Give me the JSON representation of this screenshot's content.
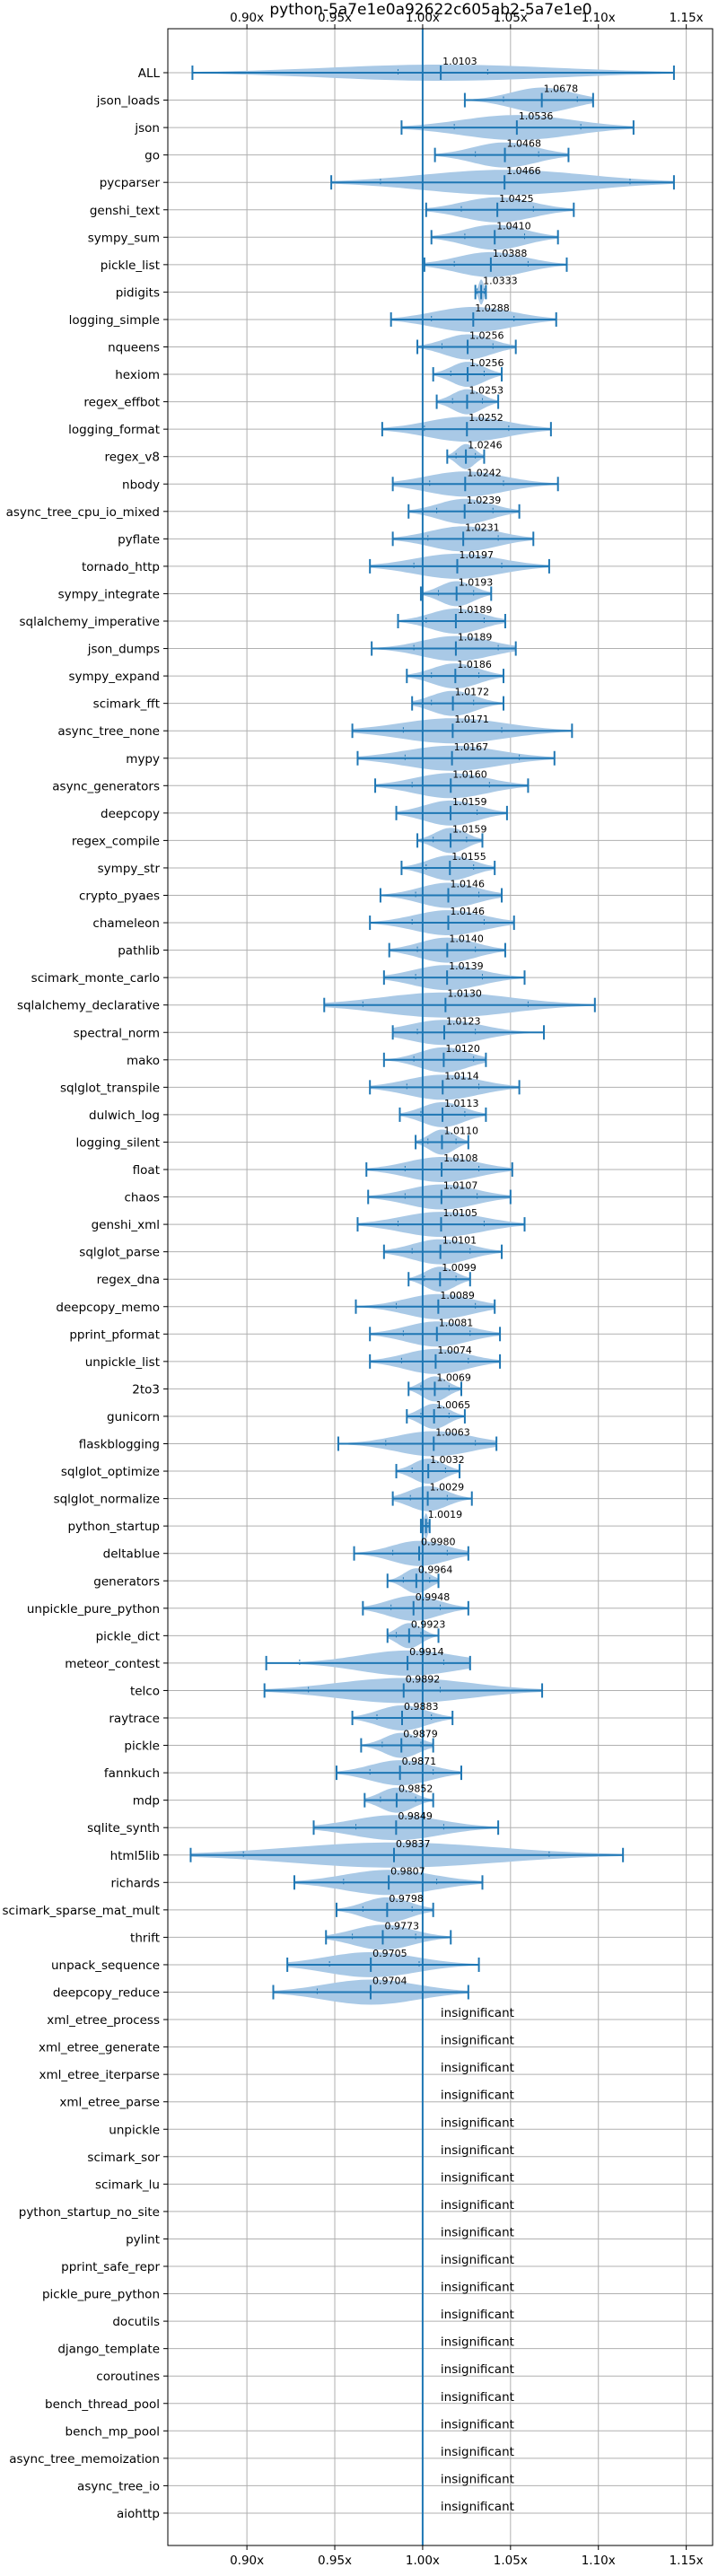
{
  "chart_data": {
    "type": "violin",
    "title": "python-5a7e1e0a92622c605ab2-5a7e1e0",
    "x_ticks": [
      "0.90x",
      "0.95x",
      "1.00x",
      "1.05x",
      "1.10x",
      "1.15x"
    ],
    "x_tick_values": [
      0.9,
      0.95,
      1.0,
      1.05,
      1.1,
      1.15
    ],
    "xlim": [
      0.855,
      1.165
    ],
    "reference_line": 1.0,
    "grid": true,
    "colors": {
      "violin": "#a9c9e6",
      "line": "#1f77b4",
      "grid": "#b0b0b0"
    },
    "insignificant_label": "insignificant",
    "benchmarks": [
      {
        "name": "ALL",
        "ratio": 1.0103,
        "label": "1.0103",
        "min": 0.869,
        "max": 1.143,
        "q1": 0.986,
        "q3": 1.037,
        "spread": "narrow"
      },
      {
        "name": "json_loads",
        "ratio": 1.0678,
        "label": "1.0678",
        "min": 1.024,
        "max": 1.097,
        "q1": 1.046,
        "q3": 1.088
      },
      {
        "name": "json",
        "ratio": 1.0536,
        "label": "1.0536",
        "min": 0.988,
        "max": 1.12,
        "q1": 1.018,
        "q3": 1.09
      },
      {
        "name": "go",
        "ratio": 1.0468,
        "label": "1.0468",
        "min": 1.007,
        "max": 1.083,
        "q1": 1.03,
        "q3": 1.066
      },
      {
        "name": "pycparser",
        "ratio": 1.0466,
        "label": "1.0466",
        "min": 0.948,
        "max": 1.143,
        "q1": 0.976,
        "q3": 1.118
      },
      {
        "name": "genshi_text",
        "ratio": 1.0425,
        "label": "1.0425",
        "min": 1.002,
        "max": 1.086,
        "q1": 1.022,
        "q3": 1.063
      },
      {
        "name": "sympy_sum",
        "ratio": 1.041,
        "label": "1.0410",
        "min": 1.005,
        "max": 1.077,
        "q1": 1.024,
        "q3": 1.058
      },
      {
        "name": "pickle_list",
        "ratio": 1.0388,
        "label": "1.0388",
        "min": 1.001,
        "max": 1.082,
        "q1": 1.018,
        "q3": 1.06
      },
      {
        "name": "pidigits",
        "ratio": 1.0333,
        "label": "1.0333",
        "min": 1.03,
        "max": 1.036,
        "q1": 1.031,
        "q3": 1.035
      },
      {
        "name": "logging_simple",
        "ratio": 1.0288,
        "label": "1.0288",
        "min": 0.982,
        "max": 1.076,
        "q1": 1.005,
        "q3": 1.052
      },
      {
        "name": "nqueens",
        "ratio": 1.0256,
        "label": "1.0256",
        "min": 0.997,
        "max": 1.053,
        "q1": 1.011,
        "q3": 1.04
      },
      {
        "name": "hexiom",
        "ratio": 1.0256,
        "label": "1.0256",
        "min": 1.006,
        "max": 1.045,
        "q1": 1.016,
        "q3": 1.035
      },
      {
        "name": "regex_effbot",
        "ratio": 1.0253,
        "label": "1.0253",
        "min": 1.008,
        "max": 1.043,
        "q1": 1.017,
        "q3": 1.034
      },
      {
        "name": "logging_format",
        "ratio": 1.0252,
        "label": "1.0252",
        "min": 0.977,
        "max": 1.073,
        "q1": 1.001,
        "q3": 1.049
      },
      {
        "name": "regex_v8",
        "ratio": 1.0246,
        "label": "1.0246",
        "min": 1.014,
        "max": 1.035,
        "q1": 1.019,
        "q3": 1.03
      },
      {
        "name": "nbody",
        "ratio": 1.0242,
        "label": "1.0242",
        "min": 0.983,
        "max": 1.077,
        "q1": 1.004,
        "q3": 1.046
      },
      {
        "name": "async_tree_cpu_io_mixed",
        "ratio": 1.0239,
        "label": "1.0239",
        "min": 0.992,
        "max": 1.055,
        "q1": 1.008,
        "q3": 1.04
      },
      {
        "name": "pyflate",
        "ratio": 1.0231,
        "label": "1.0231",
        "min": 0.983,
        "max": 1.063,
        "q1": 1.003,
        "q3": 1.043
      },
      {
        "name": "tornado_http",
        "ratio": 1.0197,
        "label": "1.0197",
        "min": 0.97,
        "max": 1.072,
        "q1": 0.995,
        "q3": 1.045
      },
      {
        "name": "sympy_integrate",
        "ratio": 1.0193,
        "label": "1.0193",
        "min": 0.999,
        "max": 1.039,
        "q1": 1.009,
        "q3": 1.029
      },
      {
        "name": "sqlalchemy_imperative",
        "ratio": 1.0189,
        "label": "1.0189",
        "min": 0.986,
        "max": 1.047,
        "q1": 1.002,
        "q3": 1.035
      },
      {
        "name": "json_dumps",
        "ratio": 1.0189,
        "label": "1.0189",
        "min": 0.971,
        "max": 1.053,
        "q1": 0.995,
        "q3": 1.043
      },
      {
        "name": "sympy_expand",
        "ratio": 1.0186,
        "label": "1.0186",
        "min": 0.991,
        "max": 1.046,
        "q1": 1.005,
        "q3": 1.032
      },
      {
        "name": "scimark_fft",
        "ratio": 1.0172,
        "label": "1.0172",
        "min": 0.994,
        "max": 1.046,
        "q1": 1.005,
        "q3": 1.029
      },
      {
        "name": "async_tree_none",
        "ratio": 1.0171,
        "label": "1.0171",
        "min": 0.96,
        "max": 1.085,
        "q1": 0.989,
        "q3": 1.045
      },
      {
        "name": "mypy",
        "ratio": 1.0167,
        "label": "1.0167",
        "min": 0.963,
        "max": 1.075,
        "q1": 0.99,
        "q3": 1.055
      },
      {
        "name": "async_generators",
        "ratio": 1.016,
        "label": "1.0160",
        "min": 0.973,
        "max": 1.06,
        "q1": 0.994,
        "q3": 1.038
      },
      {
        "name": "deepcopy",
        "ratio": 1.0159,
        "label": "1.0159",
        "min": 0.985,
        "max": 1.048,
        "q1": 1.0,
        "q3": 1.031
      },
      {
        "name": "regex_compile",
        "ratio": 1.0159,
        "label": "1.0159",
        "min": 0.997,
        "max": 1.034,
        "q1": 1.006,
        "q3": 1.025
      },
      {
        "name": "sympy_str",
        "ratio": 1.0155,
        "label": "1.0155",
        "min": 0.988,
        "max": 1.041,
        "q1": 1.002,
        "q3": 1.029
      },
      {
        "name": "crypto_pyaes",
        "ratio": 1.0146,
        "label": "1.0146",
        "min": 0.976,
        "max": 1.045,
        "q1": 0.996,
        "q3": 1.032
      },
      {
        "name": "chameleon",
        "ratio": 1.0146,
        "label": "1.0146",
        "min": 0.97,
        "max": 1.052,
        "q1": 0.994,
        "q3": 1.035
      },
      {
        "name": "pathlib",
        "ratio": 1.014,
        "label": "1.0140",
        "min": 0.981,
        "max": 1.047,
        "q1": 0.997,
        "q3": 1.03
      },
      {
        "name": "scimark_monte_carlo",
        "ratio": 1.0139,
        "label": "1.0139",
        "min": 0.978,
        "max": 1.058,
        "q1": 0.996,
        "q3": 1.034
      },
      {
        "name": "sqlalchemy_declarative",
        "ratio": 1.013,
        "label": "1.0130",
        "min": 0.944,
        "max": 1.098,
        "q1": 0.966,
        "q3": 1.06
      },
      {
        "name": "spectral_norm",
        "ratio": 1.0123,
        "label": "1.0123",
        "min": 0.983,
        "max": 1.069,
        "q1": 0.997,
        "q3": 1.03
      },
      {
        "name": "mako",
        "ratio": 1.012,
        "label": "1.0120",
        "min": 0.978,
        "max": 1.036,
        "q1": 0.995,
        "q3": 1.029
      },
      {
        "name": "sqlglot_transpile",
        "ratio": 1.0114,
        "label": "1.0114",
        "min": 0.97,
        "max": 1.055,
        "q1": 0.991,
        "q3": 1.032
      },
      {
        "name": "dulwich_log",
        "ratio": 1.0113,
        "label": "1.0113",
        "min": 0.987,
        "max": 1.036,
        "q1": 0.999,
        "q3": 1.024
      },
      {
        "name": "logging_silent",
        "ratio": 1.011,
        "label": "1.0110",
        "min": 0.996,
        "max": 1.026,
        "q1": 1.003,
        "q3": 1.019
      },
      {
        "name": "float",
        "ratio": 1.0108,
        "label": "1.0108",
        "min": 0.968,
        "max": 1.051,
        "q1": 0.99,
        "q3": 1.032
      },
      {
        "name": "chaos",
        "ratio": 1.0107,
        "label": "1.0107",
        "min": 0.969,
        "max": 1.05,
        "q1": 0.99,
        "q3": 1.031
      },
      {
        "name": "genshi_xml",
        "ratio": 1.0105,
        "label": "1.0105",
        "min": 0.963,
        "max": 1.058,
        "q1": 0.986,
        "q3": 1.035
      },
      {
        "name": "sqlglot_parse",
        "ratio": 1.0101,
        "label": "1.0101",
        "min": 0.978,
        "max": 1.045,
        "q1": 0.994,
        "q3": 1.027
      },
      {
        "name": "regex_dna",
        "ratio": 1.0099,
        "label": "1.0099",
        "min": 0.992,
        "max": 1.027,
        "q1": 1.001,
        "q3": 1.019
      },
      {
        "name": "deepcopy_memo",
        "ratio": 1.0089,
        "label": "1.0089",
        "min": 0.962,
        "max": 1.041,
        "q1": 0.985,
        "q3": 1.03
      },
      {
        "name": "pprint_pformat",
        "ratio": 1.0081,
        "label": "1.0081",
        "min": 0.97,
        "max": 1.044,
        "q1": 0.989,
        "q3": 1.027
      },
      {
        "name": "unpickle_list",
        "ratio": 1.0074,
        "label": "1.0074",
        "min": 0.97,
        "max": 1.044,
        "q1": 0.988,
        "q3": 1.026
      },
      {
        "name": "2to3",
        "ratio": 1.0069,
        "label": "1.0069",
        "min": 0.992,
        "max": 1.022,
        "q1": 0.999,
        "q3": 1.015
      },
      {
        "name": "gunicorn",
        "ratio": 1.0065,
        "label": "1.0065",
        "min": 0.991,
        "max": 1.024,
        "q1": 0.999,
        "q3": 1.015
      },
      {
        "name": "flaskblogging",
        "ratio": 1.0063,
        "label": "1.0063",
        "min": 0.952,
        "max": 1.042,
        "q1": 0.979,
        "q3": 1.03
      },
      {
        "name": "sqlglot_optimize",
        "ratio": 1.0032,
        "label": "1.0032",
        "min": 0.985,
        "max": 1.021,
        "q1": 0.994,
        "q3": 1.013
      },
      {
        "name": "sqlglot_normalize",
        "ratio": 1.0029,
        "label": "1.0029",
        "min": 0.983,
        "max": 1.028,
        "q1": 0.993,
        "q3": 1.014
      },
      {
        "name": "python_startup",
        "ratio": 1.0019,
        "label": "1.0019",
        "min": 0.999,
        "max": 1.004,
        "q1": 1.0,
        "q3": 1.003
      },
      {
        "name": "deltablue",
        "ratio": 0.998,
        "label": "0.9980",
        "min": 0.961,
        "max": 1.026,
        "q1": 0.983,
        "q3": 1.014
      },
      {
        "name": "generators",
        "ratio": 0.9964,
        "label": "0.9964",
        "min": 0.98,
        "max": 1.009,
        "q1": 0.989,
        "q3": 1.004
      },
      {
        "name": "unpickle_pure_python",
        "ratio": 0.9948,
        "label": "0.9948",
        "min": 0.966,
        "max": 1.026,
        "q1": 0.982,
        "q3": 1.01
      },
      {
        "name": "pickle_dict",
        "ratio": 0.9923,
        "label": "0.9923",
        "min": 0.98,
        "max": 1.009,
        "q1": 0.985,
        "q3": 0.999
      },
      {
        "name": "meteor_contest",
        "ratio": 0.9914,
        "label": "0.9914",
        "min": 0.911,
        "max": 1.027,
        "q1": 0.93,
        "q3": 1.012
      },
      {
        "name": "telco",
        "ratio": 0.9892,
        "label": "0.9892",
        "min": 0.91,
        "max": 1.068,
        "q1": 0.935,
        "q3": 1.01
      },
      {
        "name": "raytrace",
        "ratio": 0.9883,
        "label": "0.9883",
        "min": 0.96,
        "max": 1.017,
        "q1": 0.974,
        "q3": 1.005
      },
      {
        "name": "pickle",
        "ratio": 0.9879,
        "label": "0.9879",
        "min": 0.965,
        "max": 1.006,
        "q1": 0.977,
        "q3": 0.999
      },
      {
        "name": "fannkuch",
        "ratio": 0.9871,
        "label": "0.9871",
        "min": 0.951,
        "max": 1.022,
        "q1": 0.97,
        "q3": 1.006
      },
      {
        "name": "mdp",
        "ratio": 0.9852,
        "label": "0.9852",
        "min": 0.967,
        "max": 1.006,
        "q1": 0.976,
        "q3": 0.996
      },
      {
        "name": "sqlite_synth",
        "ratio": 0.9849,
        "label": "0.9849",
        "min": 0.938,
        "max": 1.043,
        "q1": 0.962,
        "q3": 1.012
      },
      {
        "name": "html5lib",
        "ratio": 0.9837,
        "label": "0.9837",
        "min": 0.868,
        "max": 1.114,
        "q1": 0.898,
        "q3": 1.072
      },
      {
        "name": "richards",
        "ratio": 0.9807,
        "label": "0.9807",
        "min": 0.927,
        "max": 1.034,
        "q1": 0.955,
        "q3": 1.008
      },
      {
        "name": "scimark_sparse_mat_mult",
        "ratio": 0.9798,
        "label": "0.9798",
        "min": 0.951,
        "max": 1.006,
        "q1": 0.966,
        "q3": 0.994
      },
      {
        "name": "thrift",
        "ratio": 0.9773,
        "label": "0.9773",
        "min": 0.945,
        "max": 1.016,
        "q1": 0.96,
        "q3": 0.996
      },
      {
        "name": "unpack_sequence",
        "ratio": 0.9705,
        "label": "0.9705",
        "min": 0.923,
        "max": 1.032,
        "q1": 0.947,
        "q3": 0.998
      },
      {
        "name": "deepcopy_reduce",
        "ratio": 0.9704,
        "label": "0.9704",
        "min": 0.915,
        "max": 1.026,
        "q1": 0.94,
        "q3": 1.0
      },
      {
        "name": "xml_etree_process",
        "insignificant": true
      },
      {
        "name": "xml_etree_generate",
        "insignificant": true
      },
      {
        "name": "xml_etree_iterparse",
        "insignificant": true
      },
      {
        "name": "xml_etree_parse",
        "insignificant": true
      },
      {
        "name": "unpickle",
        "insignificant": true
      },
      {
        "name": "scimark_sor",
        "insignificant": true
      },
      {
        "name": "scimark_lu",
        "insignificant": true
      },
      {
        "name": "python_startup_no_site",
        "insignificant": true
      },
      {
        "name": "pylint",
        "insignificant": true
      },
      {
        "name": "pprint_safe_repr",
        "insignificant": true
      },
      {
        "name": "pickle_pure_python",
        "insignificant": true
      },
      {
        "name": "docutils",
        "insignificant": true
      },
      {
        "name": "django_template",
        "insignificant": true
      },
      {
        "name": "coroutines",
        "insignificant": true
      },
      {
        "name": "bench_thread_pool",
        "insignificant": true
      },
      {
        "name": "bench_mp_pool",
        "insignificant": true
      },
      {
        "name": "async_tree_memoization",
        "insignificant": true
      },
      {
        "name": "async_tree_io",
        "insignificant": true
      },
      {
        "name": "aiohttp",
        "insignificant": true
      }
    ]
  }
}
